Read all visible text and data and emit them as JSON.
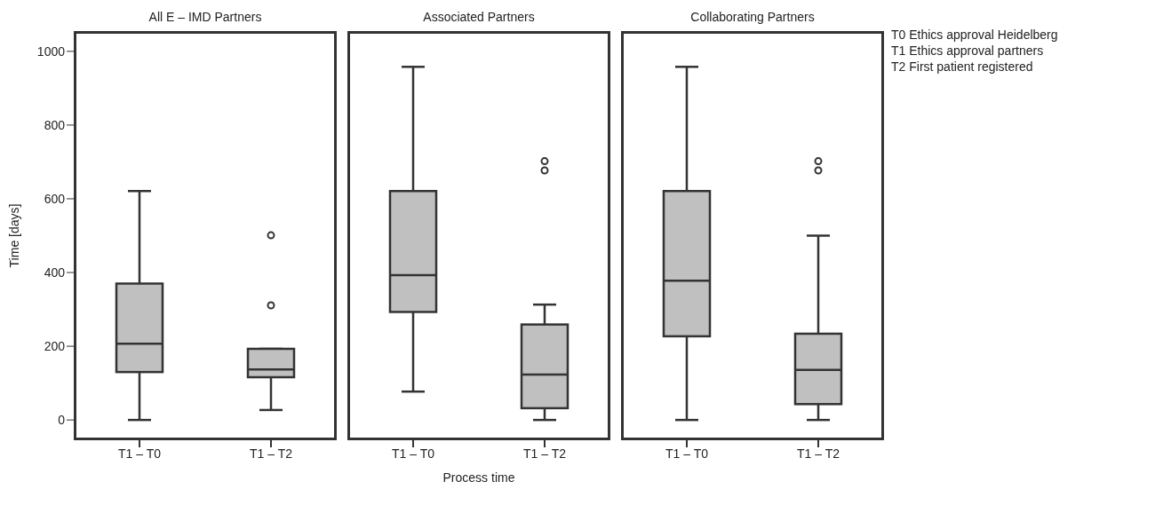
{
  "chart_data": [
    {
      "type": "box",
      "title": "All E – IMD Partners",
      "ylabel": "Time [days]",
      "categories": [
        "T1 – T0",
        "T1 – T2"
      ],
      "color": "#c0c0c0",
      "ylim": [
        -55,
        1055
      ],
      "yticks": [
        0,
        200,
        400,
        600,
        800,
        1000
      ],
      "boxes": [
        {
          "low": 0,
          "q1": 130,
          "median": 207,
          "q3": 370,
          "high": 621
        },
        {
          "low": 27,
          "q1": 116,
          "median": 137,
          "q3": 193,
          "high": 193,
          "outliers": [
            311,
            501
          ]
        }
      ]
    },
    {
      "type": "box",
      "title": "Associated Partners",
      "xlabel": "Process time",
      "categories": [
        "T1 – T0",
        "T1 – T2"
      ],
      "color": "#c0c0c0",
      "ylim": [
        -55,
        1055
      ],
      "tick_labels": "x",
      "boxes": [
        {
          "low": 77,
          "q1": 293,
          "median": 393,
          "q3": 621,
          "high": 958
        },
        {
          "low": 0,
          "q1": 32,
          "median": 123,
          "q3": 259,
          "high": 313,
          "outliers": [
            677,
            702
          ]
        }
      ]
    },
    {
      "type": "box",
      "title": "Collaborating Partners",
      "categories": [
        "T1 – T0",
        "T1 – T2"
      ],
      "color": "#c0c0c0",
      "ylim": [
        -55,
        1055
      ],
      "tick_labels": "x",
      "annotations": [
        "T0 Ethics approval Heidelberg",
        "T1 Ethics approval partners",
        "T2 First patient registered"
      ],
      "boxes": [
        {
          "low": 0,
          "q1": 227,
          "median": 378,
          "q3": 621,
          "high": 958
        },
        {
          "low": 0,
          "q1": 43,
          "median": 136,
          "q3": 234,
          "high": 500,
          "outliers": [
            677,
            702
          ]
        }
      ]
    }
  ]
}
